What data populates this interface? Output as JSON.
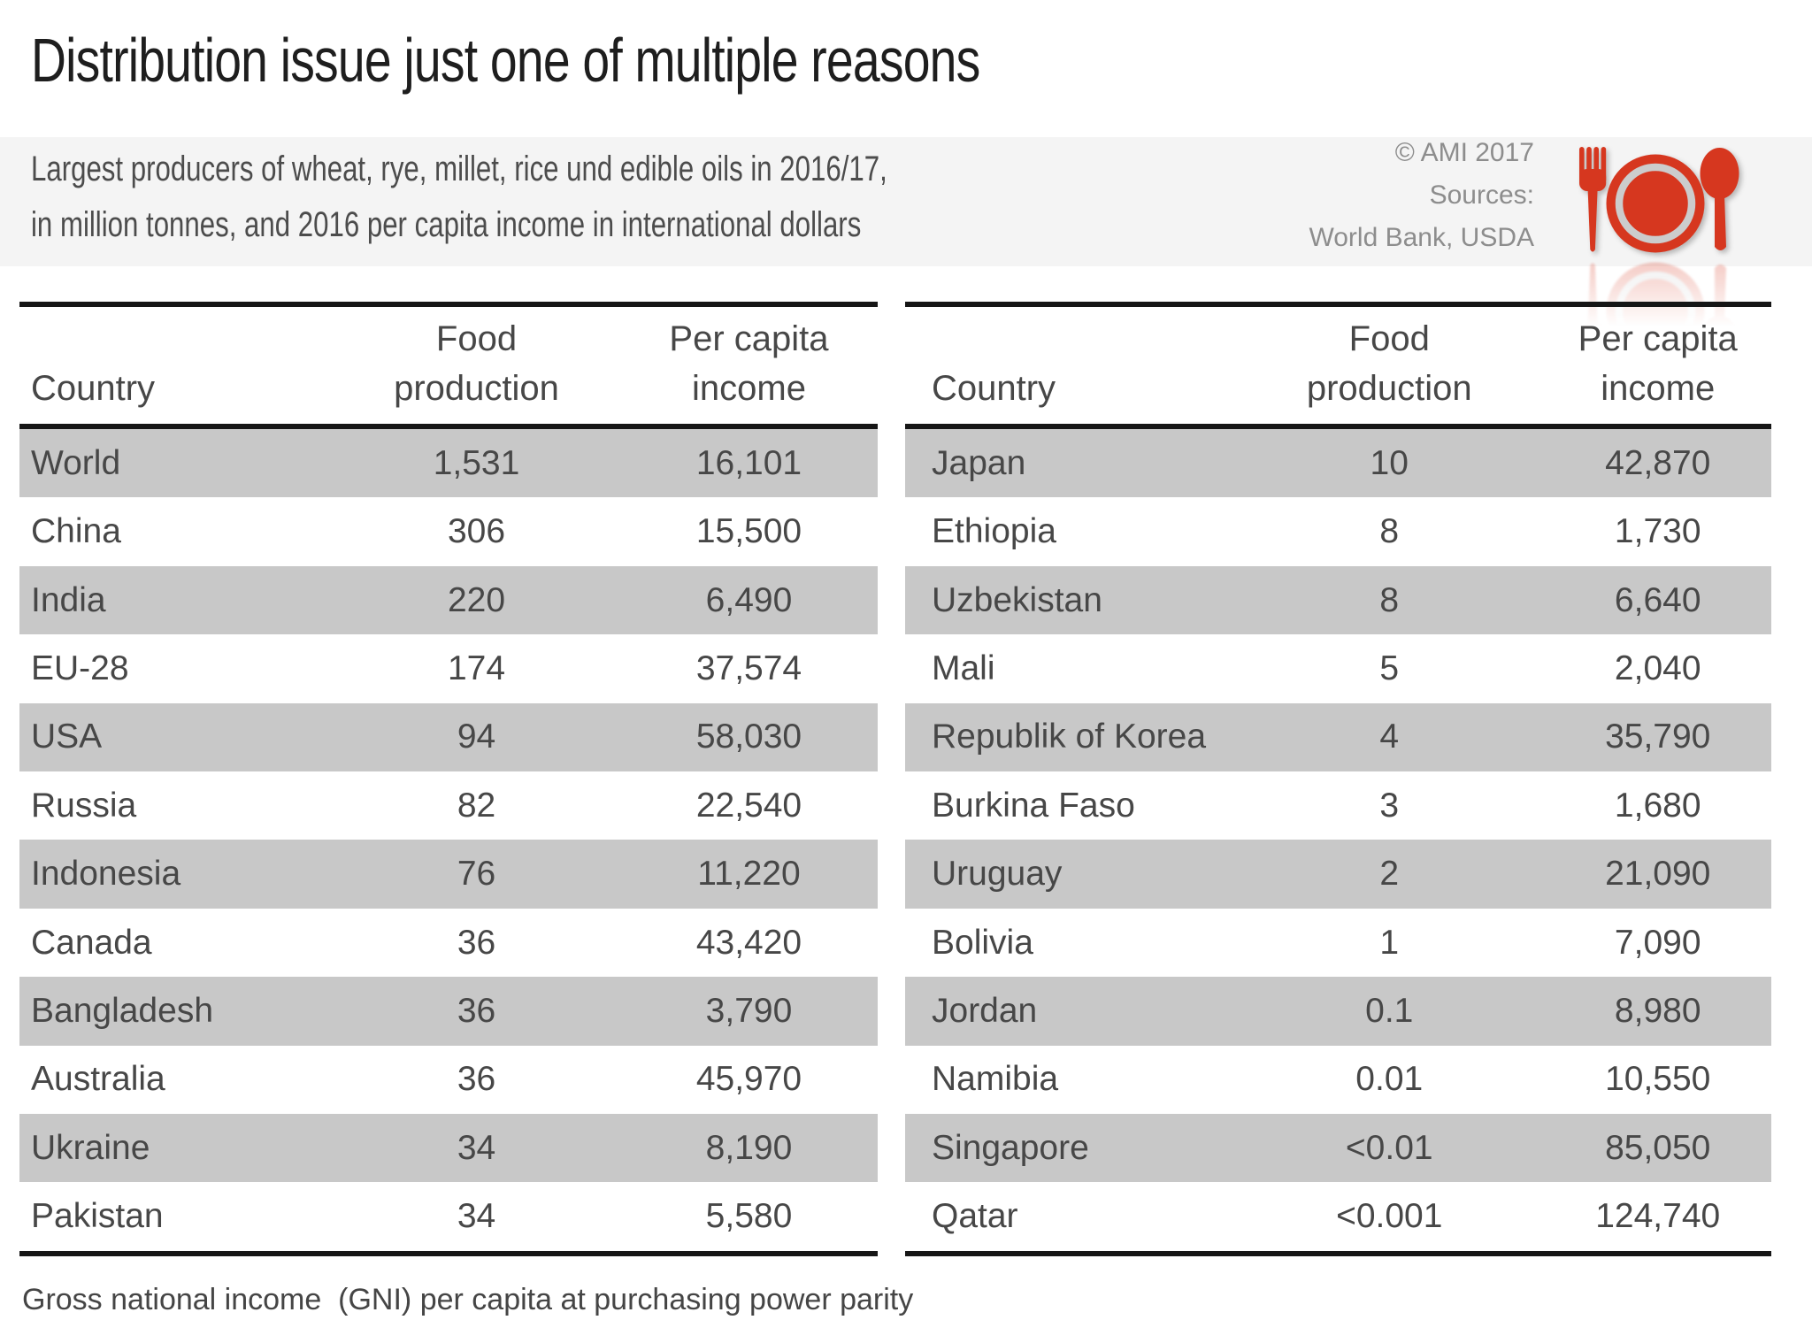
{
  "chart_data": {
    "type": "table",
    "title": "Distribution issue just one of multiple reasons",
    "subtitle_line1": "Largest producers of wheat, rye, millet, rice und edible oils in 2016/17,",
    "subtitle_line2": "in million tonnes, and 2016 per capita income in international dollars",
    "footnote": "Gross national income  (GNI) per capita at purchasing power parity",
    "credits": {
      "copyright": "© AMI 2017",
      "sources_label": "Sources:",
      "sources_value": "World Bank, USDA"
    },
    "tables": [
      {
        "name": "largest-producers",
        "headers": {
          "country": "Country",
          "production_line1": "Food",
          "production_line2": "production",
          "income_line1": "Per capita",
          "income_line2": "income"
        },
        "rows": [
          [
            "World",
            "1,531",
            "16,101"
          ],
          [
            "China",
            "306",
            "15,500"
          ],
          [
            "India",
            "220",
            "6,490"
          ],
          [
            "EU-28",
            "174",
            "37,574"
          ],
          [
            "USA",
            "94",
            "58,030"
          ],
          [
            "Russia",
            "82",
            "22,540"
          ],
          [
            "Indonesia",
            "76",
            "11,220"
          ],
          [
            "Canada",
            "36",
            "43,420"
          ],
          [
            "Bangladesh",
            "36",
            "3,790"
          ],
          [
            "Australia",
            "36",
            "45,970"
          ],
          [
            "Ukraine",
            "34",
            "8,190"
          ],
          [
            "Pakistan",
            "34",
            "5,580"
          ]
        ]
      },
      {
        "name": "smaller-producers",
        "headers": {
          "country": "Country",
          "production_line1": "Food",
          "production_line2": "production",
          "income_line1": "Per capita",
          "income_line2": "income"
        },
        "rows": [
          [
            "Japan",
            "10",
            "42,870"
          ],
          [
            "Ethiopia",
            "8",
            "1,730"
          ],
          [
            "Uzbekistan",
            "8",
            "6,640"
          ],
          [
            "Mali",
            "5",
            "2,040"
          ],
          [
            "Republik of Korea",
            "4",
            "35,790"
          ],
          [
            "Burkina Faso",
            "3",
            "1,680"
          ],
          [
            "Uruguay",
            "2",
            "21,090"
          ],
          [
            "Bolivia",
            "1",
            "7,090"
          ],
          [
            "Jordan",
            "0.1",
            "8,980"
          ],
          [
            "Namibia",
            "0.01",
            "10,550"
          ],
          [
            "Singapore",
            "<0.01",
            "85,050"
          ],
          [
            "Qatar",
            "<0.001",
            "124,740"
          ]
        ]
      }
    ]
  },
  "icon": {
    "name": "plate-fork-spoon",
    "color": "#d6371f"
  },
  "colors": {
    "accent_red": "#d6371f",
    "plate_ring": "#cccccc",
    "stripe_gray": "#c8c8c8",
    "band_gray": "#f4f4f4",
    "line_black": "#161616",
    "text_dark": "#474747",
    "text_muted": "#8d8d8d",
    "title_black": "#1e1e1e"
  }
}
